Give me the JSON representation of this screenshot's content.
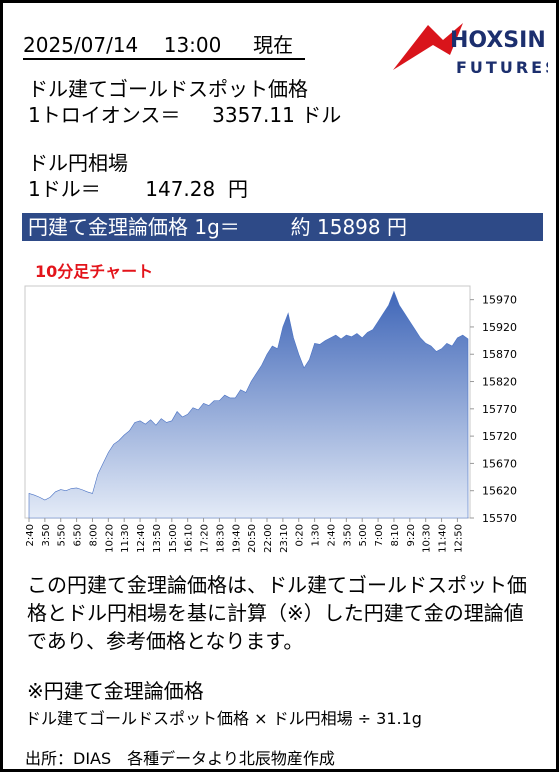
{
  "header": {
    "date": "2025/07/14",
    "time": "13:00",
    "now": "現在"
  },
  "logo": {
    "name": "HOXSIN",
    "sub": "FUTURES"
  },
  "gold": {
    "label": "ドル建てゴールドスポット価格",
    "unit_label": "1トロイオンス＝",
    "value": "3357.11",
    "unit": "ドル"
  },
  "fx": {
    "label": "ドル円相場",
    "unit_label": "1ドル＝",
    "value": "147.28",
    "unit": "円"
  },
  "theory": {
    "label": "円建て金理論価格 1g＝",
    "approx": "約",
    "value": "15898",
    "unit": "円"
  },
  "chart_data": {
    "type": "area",
    "title": "10分足チャート",
    "color": "#4a72c4",
    "categories": [
      "2:40",
      null,
      null,
      "3:50",
      null,
      null,
      "5:50",
      null,
      null,
      "6:50",
      null,
      null,
      "8:00",
      null,
      null,
      "10:20",
      null,
      null,
      "11:30",
      null,
      null,
      "12:40",
      null,
      null,
      "13:50",
      null,
      null,
      "15:00",
      null,
      null,
      "16:10",
      null,
      null,
      "17:20",
      null,
      null,
      "18:30",
      null,
      null,
      "19:40",
      null,
      null,
      "20:50",
      null,
      null,
      "22:00",
      null,
      null,
      "23:10",
      null,
      null,
      "0:20",
      null,
      null,
      "1:30",
      null,
      null,
      "2:40",
      null,
      null,
      "3:50",
      null,
      null,
      "5:00",
      null,
      null,
      "7:00",
      null,
      null,
      "8:10",
      null,
      null,
      "9:20",
      null,
      null,
      "10:30",
      null,
      null,
      "11:40",
      null,
      null,
      "12:50",
      null,
      null
    ],
    "values": [
      15615,
      15612,
      15608,
      15603,
      15608,
      15618,
      15622,
      15620,
      15624,
      15625,
      15622,
      15618,
      15615,
      15650,
      15670,
      15690,
      15705,
      15712,
      15722,
      15730,
      15745,
      15748,
      15742,
      15750,
      15740,
      15752,
      15745,
      15748,
      15765,
      15755,
      15760,
      15772,
      15768,
      15780,
      15776,
      15785,
      15785,
      15795,
      15790,
      15790,
      15805,
      15800,
      15820,
      15835,
      15850,
      15870,
      15885,
      15880,
      15920,
      15945,
      15900,
      15870,
      15845,
      15860,
      15890,
      15888,
      15895,
      15900,
      15905,
      15898,
      15905,
      15902,
      15908,
      15900,
      15910,
      15915,
      15930,
      15945,
      15960,
      15985,
      15960,
      15945,
      15930,
      15915,
      15900,
      15890,
      15885,
      15875,
      15880,
      15890,
      15885,
      15900,
      15905,
      15898
    ],
    "ylim": [
      15570,
      15995
    ],
    "yticks": [
      15570,
      15620,
      15670,
      15720,
      15770,
      15820,
      15870,
      15920,
      15970
    ],
    "grid": false
  },
  "note": {
    "body": "この円建て金理論価格は、ドル建てゴールドスポット価格とドル円相場を基に計算（※）した円建て金の理論値であり、参考価格となります。",
    "formula_title": "※円建て金理論価格",
    "formula": "ドル建てゴールドスポット価格 × ドル円相場 ÷ 31.1g"
  },
  "source": "出所：DIAS　各種データより北辰物産作成"
}
